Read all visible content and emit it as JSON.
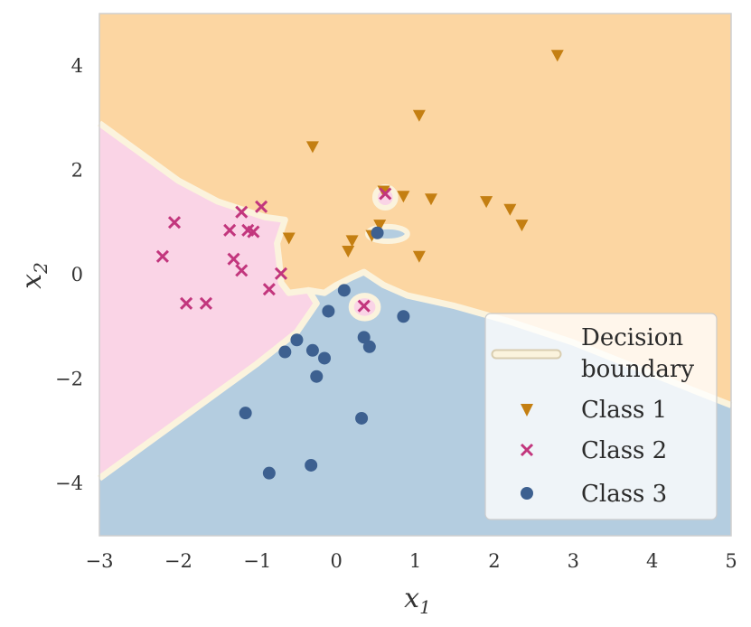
{
  "chart_data": {
    "type": "scatter",
    "title": "",
    "xlabel": "x",
    "xlabel_sub": "1",
    "ylabel": "x",
    "ylabel_sub": "2",
    "xlim": [
      -3,
      5
    ],
    "ylim": [
      -5,
      5
    ],
    "xticks": [
      -3,
      -2,
      -1,
      0,
      1,
      2,
      3,
      4,
      5
    ],
    "yticks": [
      -4,
      -2,
      0,
      2,
      4
    ],
    "xtick_labels": [
      "−3",
      "−2",
      "−1",
      "0",
      "1",
      "2",
      "3",
      "4",
      "5"
    ],
    "ytick_labels": [
      "−4",
      "−2",
      "0",
      "2",
      "4"
    ],
    "grid": false,
    "legend_position": "lower-right",
    "regions": [
      {
        "name": "Class 1",
        "color": "#fcd6a2"
      },
      {
        "name": "Class 2",
        "color": "#fad4e6"
      },
      {
        "name": "Class 3",
        "color": "#b4cde0"
      }
    ],
    "boundary_color": "#fbf3dd",
    "legend": {
      "boundary_label_line1": "Decision",
      "boundary_label_line2": "boundary",
      "class1_label": "Class 1",
      "class2_label": "Class 2",
      "class3_label": "Class 3"
    },
    "series": [
      {
        "name": "Class 1",
        "marker": "triangle-down",
        "color": "#c47f12",
        "points": [
          [
            2.8,
            4.2
          ],
          [
            1.05,
            3.05
          ],
          [
            -0.3,
            2.45
          ],
          [
            0.6,
            1.6
          ],
          [
            0.85,
            1.5
          ],
          [
            1.2,
            1.45
          ],
          [
            1.9,
            1.4
          ],
          [
            2.2,
            1.25
          ],
          [
            2.35,
            0.95
          ],
          [
            0.55,
            0.95
          ],
          [
            -0.6,
            0.7
          ],
          [
            0.2,
            0.65
          ],
          [
            0.45,
            0.75
          ],
          [
            0.15,
            0.45
          ],
          [
            1.05,
            0.35
          ]
        ]
      },
      {
        "name": "Class 2",
        "marker": "x",
        "color": "#c2367d",
        "points": [
          [
            -2.05,
            1.0
          ],
          [
            -1.2,
            1.2
          ],
          [
            -0.95,
            1.3
          ],
          [
            -1.35,
            0.85
          ],
          [
            -1.12,
            0.85
          ],
          [
            -1.05,
            0.82
          ],
          [
            -2.2,
            0.35
          ],
          [
            -1.3,
            0.3
          ],
          [
            -1.2,
            0.08
          ],
          [
            -0.7,
            0.02
          ],
          [
            -0.85,
            -0.28
          ],
          [
            -1.9,
            -0.55
          ],
          [
            -1.65,
            -0.55
          ],
          [
            0.62,
            1.55
          ],
          [
            0.35,
            -0.6
          ]
        ]
      },
      {
        "name": "Class 3",
        "marker": "circle",
        "color": "#3d6090",
        "points": [
          [
            0.52,
            0.8
          ],
          [
            0.1,
            -0.3
          ],
          [
            -0.1,
            -0.7
          ],
          [
            0.85,
            -0.8
          ],
          [
            -0.5,
            -1.25
          ],
          [
            -0.3,
            -1.45
          ],
          [
            -0.65,
            -1.48
          ],
          [
            0.35,
            -1.2
          ],
          [
            0.42,
            -1.38
          ],
          [
            -0.15,
            -1.6
          ],
          [
            -0.25,
            -1.95
          ],
          [
            -1.15,
            -2.65
          ],
          [
            0.32,
            -2.75
          ],
          [
            -0.32,
            -3.65
          ],
          [
            -0.85,
            -3.8
          ]
        ]
      }
    ]
  }
}
